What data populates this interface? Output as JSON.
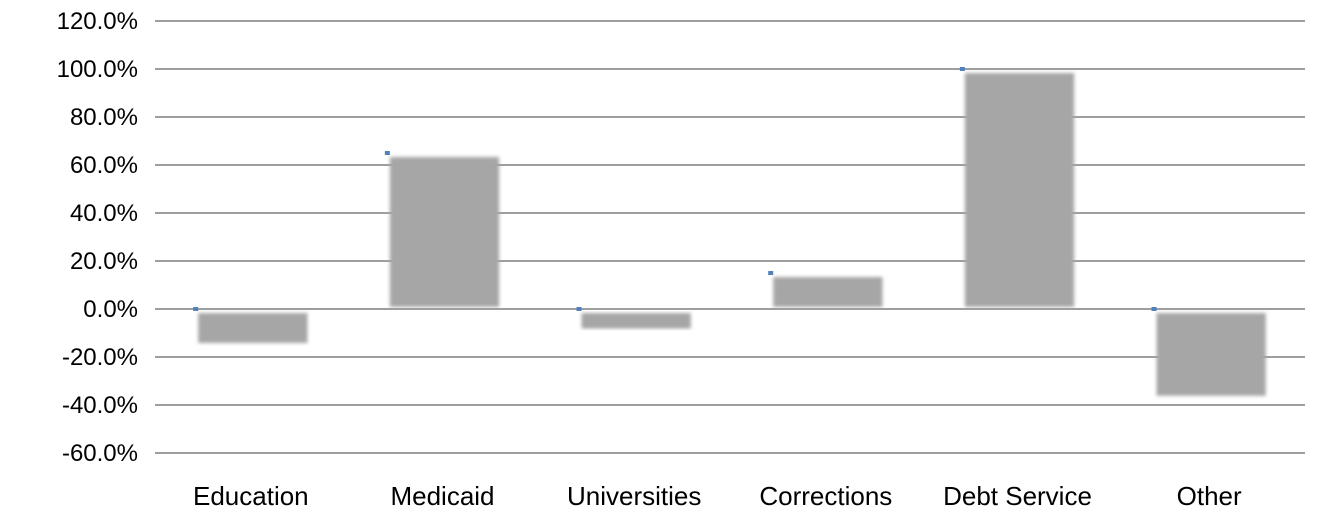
{
  "chart_data": {
    "type": "bar",
    "title": "",
    "xlabel": "",
    "ylabel": "",
    "categories": [
      "Education",
      "Medicaid",
      "Universities",
      "Corrections",
      "Debt Service",
      "Other"
    ],
    "values": [
      -15.0,
      65.0,
      -9.0,
      15.0,
      100.0,
      -37.0
    ],
    "markers": [
      0.0,
      65.0,
      0.0,
      15.0,
      100.0,
      0.0
    ],
    "ylim": [
      -60,
      120
    ],
    "yticks": [
      120,
      100,
      80,
      60,
      40,
      20,
      0,
      -20,
      -40,
      -60
    ],
    "ytick_labels": [
      "120.0%",
      "100.0%",
      "80.0%",
      "60.0%",
      "40.0%",
      "20.0%",
      "0.0%",
      "-20.0%",
      "-40.0%",
      "-60.0%"
    ],
    "grid": true,
    "legend": "none",
    "colors": {
      "bar": "#a6a6a6",
      "marker": "#4f81bd",
      "grid": "#7f7f7f",
      "text": "#000000"
    }
  }
}
